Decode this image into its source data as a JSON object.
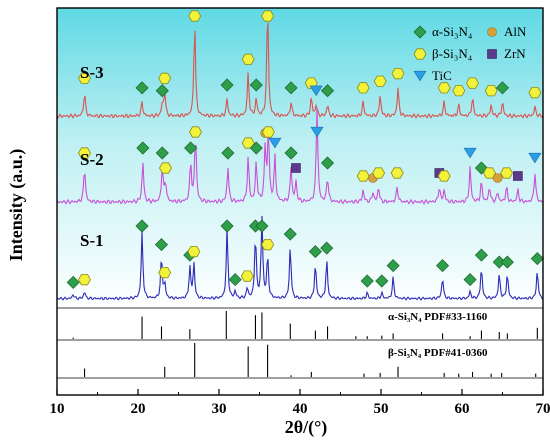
{
  "chart_data": {
    "type": "line",
    "xlabel": "2θ/(°)",
    "ylabel": "Intensity (a.u.)",
    "xlim": [
      10,
      70
    ],
    "x_ticks": [
      10,
      20,
      30,
      40,
      50,
      60,
      70
    ],
    "x_tick_labels": [
      "10",
      "20",
      "30",
      "40",
      "50",
      "60",
      "70"
    ],
    "legend": {
      "placement": "top-right",
      "entries": [
        {
          "label": "α-Si₃N₄",
          "marker": "diamond",
          "color": "#2e9e4a"
        },
        {
          "label": "AlN",
          "marker": "circle",
          "color": "#d4a13a"
        },
        {
          "label": "β-Si₃N₄",
          "marker": "hexagon",
          "color": "#f2f23a"
        },
        {
          "label": "ZrN",
          "marker": "square",
          "color": "#5a3a8a"
        },
        {
          "label": "TiC",
          "marker": "triangle-down",
          "color": "#2a9fe8"
        }
      ]
    },
    "series": [
      {
        "name": "S-3",
        "color": "#d9534f",
        "background": "#7ee2ea",
        "peaks": [
          {
            "x": 13.4,
            "h": 0.25,
            "phase": "beta"
          },
          {
            "x": 20.5,
            "h": 0.15,
            "phase": "alpha"
          },
          {
            "x": 23.0,
            "h": 0.12,
            "phase": "alpha"
          },
          {
            "x": 23.3,
            "h": 0.25,
            "phase": "beta"
          },
          {
            "x": 27.0,
            "h": 1.0,
            "phase": "beta"
          },
          {
            "x": 31.0,
            "h": 0.18,
            "phase": "alpha"
          },
          {
            "x": 33.6,
            "h": 0.45,
            "phase": "beta"
          },
          {
            "x": 34.6,
            "h": 0.18,
            "phase": "alpha"
          },
          {
            "x": 36.0,
            "h": 1.15,
            "phase": "beta"
          },
          {
            "x": 38.9,
            "h": 0.15,
            "phase": "alpha"
          },
          {
            "x": 41.4,
            "h": 0.2,
            "phase": "beta"
          },
          {
            "x": 42.0,
            "h": 0.12,
            "phase": "TiC"
          },
          {
            "x": 43.4,
            "h": 0.12,
            "phase": "alpha"
          },
          {
            "x": 47.8,
            "h": 0.15,
            "phase": "beta"
          },
          {
            "x": 49.9,
            "h": 0.22,
            "phase": "beta"
          },
          {
            "x": 52.1,
            "h": 0.3,
            "phase": "beta"
          },
          {
            "x": 57.8,
            "h": 0.15,
            "phase": "beta"
          },
          {
            "x": 59.6,
            "h": 0.12,
            "phase": "beta"
          },
          {
            "x": 61.3,
            "h": 0.2,
            "phase": "beta"
          },
          {
            "x": 63.6,
            "h": 0.12,
            "phase": "beta"
          },
          {
            "x": 65.0,
            "h": 0.15,
            "phase": "alpha"
          },
          {
            "x": 69.0,
            "h": 0.1,
            "phase": "beta"
          }
        ]
      },
      {
        "name": "S-2",
        "color": "#c94fd6",
        "background": "#c7f0f4",
        "peaks": [
          {
            "x": 13.4,
            "h": 0.35,
            "phase": "beta"
          },
          {
            "x": 20.6,
            "h": 0.4,
            "phase": "alpha"
          },
          {
            "x": 23.0,
            "h": 0.35,
            "phase": "alpha"
          },
          {
            "x": 23.4,
            "h": 0.2,
            "phase": "beta"
          },
          {
            "x": 26.5,
            "h": 0.4,
            "phase": "alpha"
          },
          {
            "x": 27.1,
            "h": 0.7,
            "phase": "beta"
          },
          {
            "x": 31.1,
            "h": 0.35,
            "phase": "alpha"
          },
          {
            "x": 33.6,
            "h": 0.45,
            "phase": "beta"
          },
          {
            "x": 34.6,
            "h": 0.4,
            "phase": "alpha"
          },
          {
            "x": 35.7,
            "h": 0.55,
            "phase": "AlN"
          },
          {
            "x": 36.1,
            "h": 0.7,
            "phase": "beta"
          },
          {
            "x": 36.9,
            "h": 0.45,
            "phase": "TiC"
          },
          {
            "x": 38.9,
            "h": 0.35,
            "phase": "alpha"
          },
          {
            "x": 39.5,
            "h": 0.2,
            "phase": "ZrN"
          },
          {
            "x": 42.1,
            "h": 0.95,
            "phase": "TiC"
          },
          {
            "x": 43.4,
            "h": 0.25,
            "phase": "alpha"
          },
          {
            "x": 47.8,
            "h": 0.12,
            "phase": "beta"
          },
          {
            "x": 49.0,
            "h": 0.1,
            "phase": "AlN"
          },
          {
            "x": 49.7,
            "h": 0.15,
            "phase": "beta"
          },
          {
            "x": 52.0,
            "h": 0.15,
            "phase": "beta"
          },
          {
            "x": 57.2,
            "h": 0.15,
            "phase": "ZrN"
          },
          {
            "x": 57.8,
            "h": 0.12,
            "phase": "beta"
          },
          {
            "x": 61.0,
            "h": 0.35,
            "phase": "TiC"
          },
          {
            "x": 62.4,
            "h": 0.2,
            "phase": "alpha"
          },
          {
            "x": 63.4,
            "h": 0.15,
            "phase": "beta"
          },
          {
            "x": 64.4,
            "h": 0.1,
            "phase": "AlN"
          },
          {
            "x": 65.5,
            "h": 0.15,
            "phase": "beta"
          },
          {
            "x": 66.9,
            "h": 0.12,
            "phase": "ZrN"
          },
          {
            "x": 69.0,
            "h": 0.3,
            "phase": "TiC"
          }
        ]
      },
      {
        "name": "S-1",
        "color": "#2c2ab8",
        "background": "#ffffff",
        "peaks": [
          {
            "x": 12.0,
            "h": 0.06,
            "phase": "alpha"
          },
          {
            "x": 13.4,
            "h": 0.1,
            "phase": "beta"
          },
          {
            "x": 20.5,
            "h": 0.95,
            "phase": "alpha"
          },
          {
            "x": 22.9,
            "h": 0.6,
            "phase": "alpha"
          },
          {
            "x": 23.3,
            "h": 0.2,
            "phase": "beta"
          },
          {
            "x": 26.4,
            "h": 0.45,
            "phase": "alpha"
          },
          {
            "x": 26.9,
            "h": 0.5,
            "phase": "beta"
          },
          {
            "x": 31.0,
            "h": 1.0,
            "phase": "alpha"
          },
          {
            "x": 32.0,
            "h": 0.1,
            "phase": "alpha"
          },
          {
            "x": 33.5,
            "h": 0.15,
            "phase": "beta"
          },
          {
            "x": 34.5,
            "h": 0.9,
            "phase": "alpha"
          },
          {
            "x": 35.3,
            "h": 1.15,
            "phase": "alpha"
          },
          {
            "x": 36.0,
            "h": 0.6,
            "phase": "beta"
          },
          {
            "x": 38.8,
            "h": 0.75,
            "phase": "alpha"
          },
          {
            "x": 41.9,
            "h": 0.5,
            "phase": "alpha"
          },
          {
            "x": 43.3,
            "h": 0.55,
            "phase": "alpha"
          },
          {
            "x": 48.3,
            "h": 0.08,
            "phase": "alpha"
          },
          {
            "x": 50.1,
            "h": 0.08,
            "phase": "alpha"
          },
          {
            "x": 51.5,
            "h": 0.3,
            "phase": "alpha"
          },
          {
            "x": 57.6,
            "h": 0.3,
            "phase": "alpha"
          },
          {
            "x": 61.0,
            "h": 0.1,
            "phase": "alpha"
          },
          {
            "x": 62.4,
            "h": 0.45,
            "phase": "alpha"
          },
          {
            "x": 64.6,
            "h": 0.35,
            "phase": "alpha"
          },
          {
            "x": 65.6,
            "h": 0.35,
            "phase": "alpha"
          },
          {
            "x": 69.3,
            "h": 0.4,
            "phase": "alpha"
          }
        ]
      }
    ],
    "references": [
      {
        "label": "α-Si₃N₄ PDF#33-1160",
        "lines": [
          {
            "x": 12.0,
            "h": 0.05
          },
          {
            "x": 20.5,
            "h": 0.8
          },
          {
            "x": 22.9,
            "h": 0.45
          },
          {
            "x": 26.4,
            "h": 0.35
          },
          {
            "x": 30.9,
            "h": 1.0
          },
          {
            "x": 34.5,
            "h": 0.85
          },
          {
            "x": 35.3,
            "h": 0.95
          },
          {
            "x": 38.8,
            "h": 0.55
          },
          {
            "x": 41.9,
            "h": 0.3
          },
          {
            "x": 43.4,
            "h": 0.45
          },
          {
            "x": 46.9,
            "h": 0.1
          },
          {
            "x": 48.3,
            "h": 0.1
          },
          {
            "x": 50.1,
            "h": 0.12
          },
          {
            "x": 51.5,
            "h": 0.2
          },
          {
            "x": 57.6,
            "h": 0.2
          },
          {
            "x": 61.0,
            "h": 0.1
          },
          {
            "x": 62.4,
            "h": 0.3
          },
          {
            "x": 64.6,
            "h": 0.25
          },
          {
            "x": 65.6,
            "h": 0.2
          },
          {
            "x": 69.3,
            "h": 0.4
          }
        ]
      },
      {
        "label": "β-Si₃N₄ PDF#41-0360",
        "lines": [
          {
            "x": 13.4,
            "h": 0.25
          },
          {
            "x": 23.3,
            "h": 0.3
          },
          {
            "x": 27.0,
            "h": 1.0
          },
          {
            "x": 33.6,
            "h": 0.9
          },
          {
            "x": 36.0,
            "h": 0.95
          },
          {
            "x": 38.9,
            "h": 0.05
          },
          {
            "x": 41.4,
            "h": 0.15
          },
          {
            "x": 47.9,
            "h": 0.1
          },
          {
            "x": 49.9,
            "h": 0.12
          },
          {
            "x": 52.1,
            "h": 0.3
          },
          {
            "x": 57.8,
            "h": 0.12
          },
          {
            "x": 59.6,
            "h": 0.1
          },
          {
            "x": 61.3,
            "h": 0.15
          },
          {
            "x": 63.6,
            "h": 0.1
          },
          {
            "x": 64.9,
            "h": 0.12
          },
          {
            "x": 69.1,
            "h": 0.1
          }
        ]
      }
    ]
  }
}
